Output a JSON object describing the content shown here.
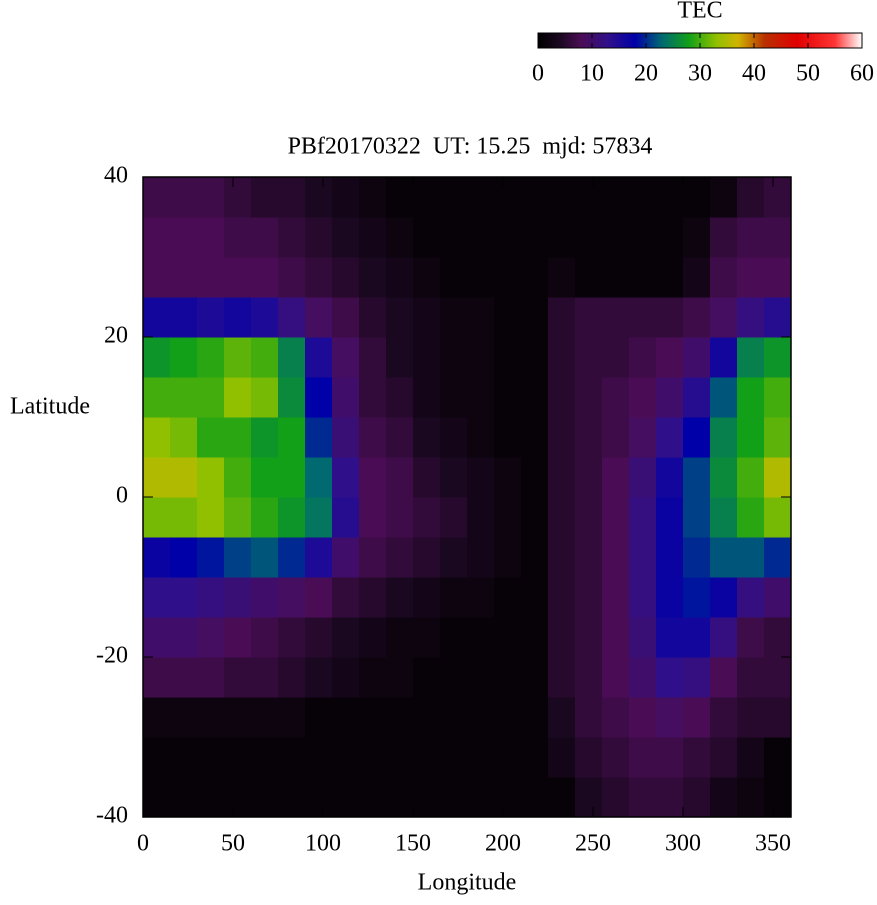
{
  "chart_data": {
    "type": "heatmap",
    "title": "PBf20170322  UT: 15.25  mjd: 57834",
    "x_label": "Longitude",
    "y_label": "Latitude",
    "colorbar_label": "TEC",
    "xlim": [
      0,
      360
    ],
    "ylim": [
      -40,
      40
    ],
    "xticks": [
      0,
      50,
      100,
      150,
      200,
      250,
      300,
      350
    ],
    "yticks": [
      -40,
      -20,
      0,
      20,
      40
    ],
    "zlim": [
      0,
      60
    ],
    "colorbar_ticks": [
      0,
      10,
      20,
      30,
      40,
      50,
      60
    ],
    "colormap": [
      {
        "value": 0,
        "color": "#000000"
      },
      {
        "value": 4,
        "color": "#1a0820"
      },
      {
        "value": 8,
        "color": "#4a0d55"
      },
      {
        "value": 13,
        "color": "#30108a"
      },
      {
        "value": 18,
        "color": "#0000a8"
      },
      {
        "value": 23,
        "color": "#006a70"
      },
      {
        "value": 28,
        "color": "#12a018"
      },
      {
        "value": 33,
        "color": "#90c000"
      },
      {
        "value": 37,
        "color": "#cfb400"
      },
      {
        "value": 42,
        "color": "#b83000"
      },
      {
        "value": 48,
        "color": "#e00000"
      },
      {
        "value": 55,
        "color": "#ff3535"
      },
      {
        "value": 60,
        "color": "#ffffff"
      }
    ],
    "x": [
      7.5,
      22.5,
      37.5,
      52.5,
      67.5,
      82.5,
      97.5,
      112.5,
      127.5,
      142.5,
      157.5,
      172.5,
      187.5,
      202.5,
      217.5,
      232.5,
      247.5,
      262.5,
      277.5,
      292.5,
      307.5,
      322.5,
      337.5,
      352.5
    ],
    "y": [
      -37.5,
      -32.5,
      -27.5,
      -22.5,
      -17.5,
      -12.5,
      -7.5,
      -2.5,
      2.5,
      7.5,
      12.5,
      17.5,
      22.5,
      27.5,
      32.5,
      37.5
    ],
    "values": [
      [
        1,
        1,
        1,
        1,
        1,
        1,
        1,
        1,
        1,
        1,
        1,
        1,
        1,
        1,
        1,
        1,
        4,
        5,
        6,
        6,
        5,
        3,
        2,
        1
      ],
      [
        1,
        1,
        1,
        1,
        1,
        1,
        1,
        1,
        1,
        1,
        1,
        1,
        1,
        1,
        1,
        3,
        5,
        6,
        7,
        7,
        6,
        5,
        3,
        1
      ],
      [
        2,
        2,
        2,
        2,
        2,
        2,
        1,
        1,
        1,
        1,
        1,
        1,
        1,
        1,
        1,
        4,
        6,
        7,
        8,
        9,
        8,
        6,
        5,
        5
      ],
      [
        7,
        7,
        7,
        6,
        6,
        5,
        4,
        3,
        2,
        2,
        1,
        1,
        1,
        1,
        1,
        5,
        6,
        8,
        10,
        13,
        12,
        8,
        6,
        6
      ],
      [
        10,
        10,
        9,
        8,
        7,
        6,
        5,
        4,
        3,
        2,
        2,
        1,
        1,
        1,
        1,
        5,
        6,
        8,
        11,
        16,
        16,
        12,
        7,
        6
      ],
      [
        13,
        13,
        12,
        11,
        10,
        9,
        8,
        6,
        5,
        4,
        3,
        2,
        2,
        1,
        1,
        5,
        6,
        8,
        12,
        17,
        19,
        17,
        12,
        10
      ],
      [
        17,
        18,
        19,
        21,
        22,
        20,
        15,
        10,
        7,
        6,
        5,
        4,
        3,
        2,
        1,
        5,
        6,
        8,
        12,
        17,
        20,
        22,
        22,
        20
      ],
      [
        32,
        32,
        33,
        31,
        29,
        27,
        24,
        14,
        8,
        7,
        6,
        5,
        3,
        2,
        1,
        5,
        6,
        8,
        12,
        17,
        21,
        25,
        29,
        32
      ],
      [
        35,
        35,
        33,
        30,
        28,
        28,
        23,
        13,
        8,
        7,
        5,
        4,
        3,
        2,
        1,
        5,
        6,
        8,
        11,
        16,
        21,
        26,
        30,
        35
      ],
      [
        33,
        32,
        29,
        29,
        27,
        28,
        20,
        11,
        7,
        6,
        4,
        3,
        2,
        1,
        1,
        5,
        6,
        7,
        9,
        13,
        18,
        25,
        28,
        31
      ],
      [
        30,
        30,
        30,
        33,
        32,
        26,
        18,
        10,
        6,
        5,
        3,
        2,
        2,
        1,
        1,
        5,
        6,
        7,
        8,
        10,
        14,
        22,
        28,
        30
      ],
      [
        27,
        28,
        29,
        31,
        30,
        25,
        15,
        9,
        6,
        4,
        3,
        2,
        2,
        1,
        1,
        5,
        6,
        6,
        7,
        8,
        10,
        16,
        25,
        27
      ],
      [
        16,
        16,
        15,
        16,
        15,
        12,
        9,
        7,
        5,
        4,
        3,
        2,
        2,
        1,
        1,
        5,
        6,
        6,
        6,
        6,
        7,
        9,
        12,
        14
      ],
      [
        8,
        8,
        8,
        8,
        8,
        7,
        6,
        5,
        4,
        3,
        2,
        1,
        1,
        1,
        1,
        2,
        1,
        1,
        1,
        1,
        3,
        7,
        8,
        8
      ],
      [
        8,
        8,
        8,
        7,
        7,
        6,
        5,
        4,
        3,
        2,
        1,
        1,
        1,
        1,
        1,
        1,
        1,
        1,
        1,
        1,
        2,
        6,
        7,
        7
      ],
      [
        7,
        7,
        7,
        6,
        5,
        5,
        4,
        3,
        2,
        1,
        1,
        1,
        1,
        1,
        1,
        1,
        1,
        1,
        1,
        1,
        1,
        2,
        5,
        6
      ]
    ]
  }
}
